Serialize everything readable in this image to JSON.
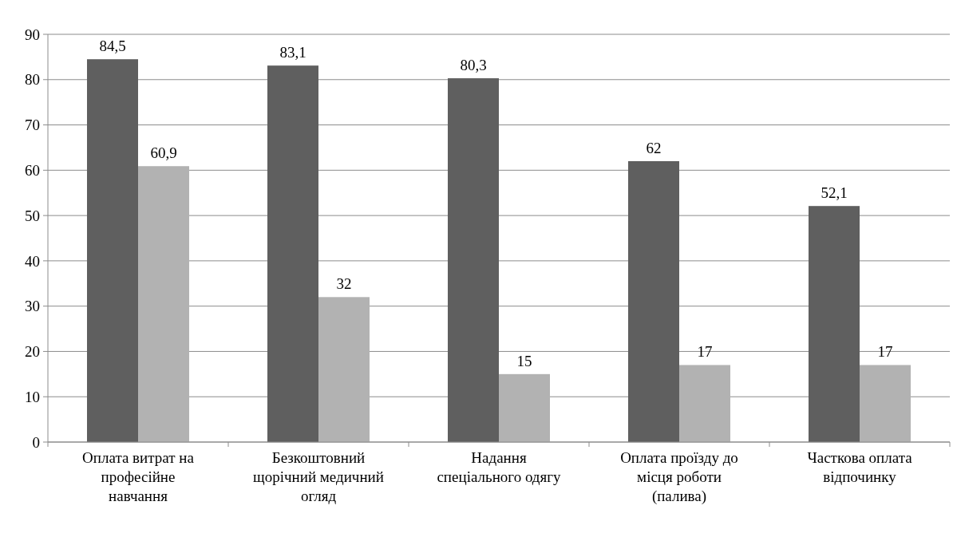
{
  "chart_data": {
    "type": "bar",
    "categories": [
      "Оплата витрат на професійне навчання",
      "Безкоштовний щорічний медичний огляд",
      "Надання спеціального одягу",
      "Оплата проїзду до місця роботи (палива)",
      "Часткова оплата відпочинку"
    ],
    "series": [
      {
        "color": "#5f5f5f",
        "values": [
          84.5,
          83.1,
          80.3,
          62,
          52.1
        ],
        "value_labels": [
          "84,5",
          "83,1",
          "80,3",
          "62",
          "52,1"
        ]
      },
      {
        "color": "#b2b2b2",
        "values": [
          60.9,
          32,
          15,
          17,
          17
        ],
        "value_labels": [
          "60,9",
          "32",
          "15",
          "17",
          "17"
        ]
      }
    ],
    "ylim": [
      0,
      90
    ],
    "yticks": [
      0,
      10,
      20,
      30,
      40,
      50,
      60,
      70,
      80,
      90
    ],
    "grid": "y"
  }
}
